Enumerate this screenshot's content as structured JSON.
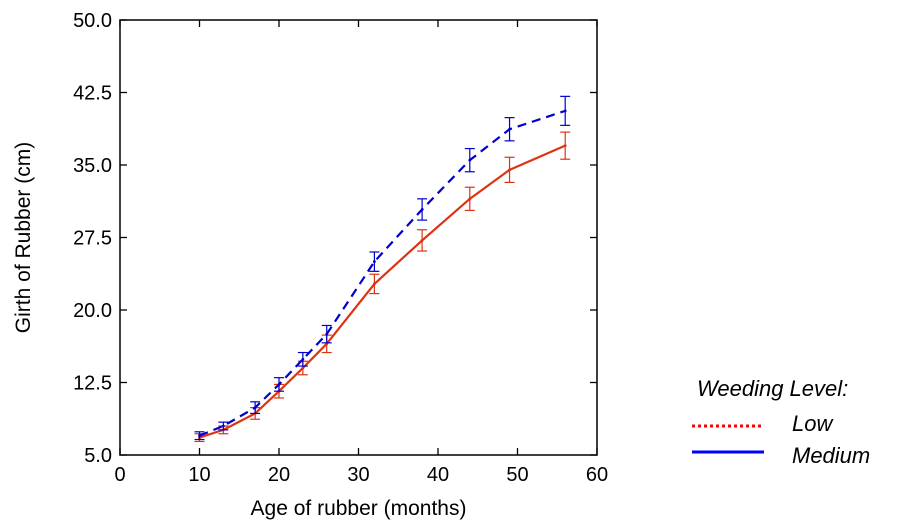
{
  "chart_data": {
    "type": "line",
    "title": "",
    "xlabel": "Age of rubber (months)",
    "ylabel": "Girth of Rubber (cm)",
    "xlim": [
      0,
      60
    ],
    "ylim": [
      5.0,
      50.0
    ],
    "xticks": [
      0,
      10,
      20,
      30,
      40,
      50,
      60
    ],
    "yticks": [
      "5.0",
      "12.5",
      "20.0",
      "27.5",
      "35.0",
      "42.5",
      "50.0"
    ],
    "grid": false,
    "legend": {
      "title": "Weeding Level:",
      "placement": "right",
      "entries": [
        "Low",
        "Medium"
      ]
    },
    "series": [
      {
        "name": "Low",
        "color": "#dd3311",
        "legend_color": "#ff0000",
        "style": "solid",
        "x": [
          10,
          13,
          17,
          20,
          23,
          26,
          32,
          38,
          44,
          49,
          56
        ],
        "y": [
          6.8,
          7.6,
          9.3,
          11.6,
          14.0,
          16.5,
          22.7,
          27.2,
          31.5,
          34.5,
          37.0
        ],
        "err": [
          0.4,
          0.4,
          0.6,
          0.7,
          0.7,
          0.9,
          1.0,
          1.1,
          1.2,
          1.3,
          1.4
        ]
      },
      {
        "name": "Medium",
        "color": "#0000cc",
        "legend_color": "#0000ff",
        "style": "dashed",
        "x": [
          10,
          13,
          17,
          20,
          23,
          26,
          32,
          38,
          44,
          49,
          56
        ],
        "y": [
          7.0,
          8.0,
          9.9,
          12.3,
          14.9,
          17.5,
          25.0,
          30.4,
          35.5,
          38.7,
          40.6
        ],
        "err": [
          0.4,
          0.4,
          0.6,
          0.7,
          0.7,
          0.9,
          1.0,
          1.1,
          1.2,
          1.2,
          1.5
        ]
      }
    ]
  }
}
